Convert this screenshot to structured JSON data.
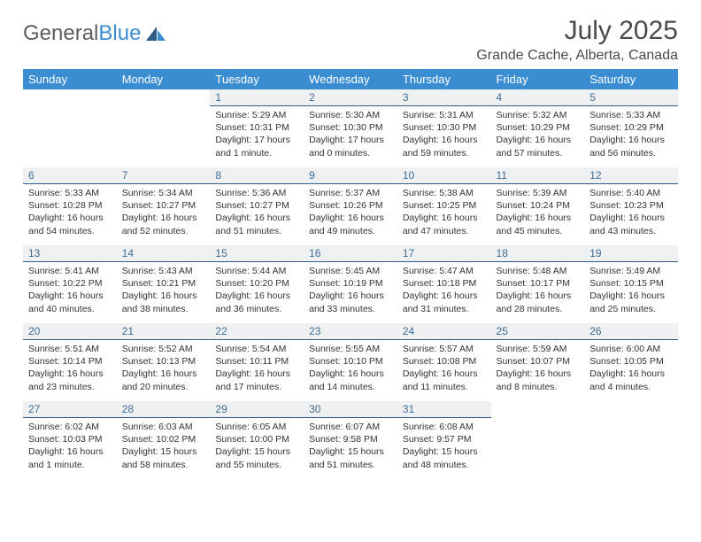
{
  "brand": {
    "word1": "General",
    "word2": "Blue"
  },
  "title": "July 2025",
  "location": "Grande Cache, Alberta, Canada",
  "colors": {
    "header_bg": "#3a8dd0",
    "header_text": "#ffffff",
    "daynum_bg": "#eef0f2",
    "daynum_text": "#3e6c94",
    "daynum_border": "#2f5b86",
    "body_text": "#333333",
    "logo_gray": "#5e5e5e",
    "logo_blue": "#3a8dd0"
  },
  "dayHeaders": [
    "Sunday",
    "Monday",
    "Tuesday",
    "Wednesday",
    "Thursday",
    "Friday",
    "Saturday"
  ],
  "weeks": [
    [
      {
        "n": "",
        "sr": "",
        "ss": "",
        "dl": ""
      },
      {
        "n": "",
        "sr": "",
        "ss": "",
        "dl": ""
      },
      {
        "n": "1",
        "sr": "Sunrise: 5:29 AM",
        "ss": "Sunset: 10:31 PM",
        "dl": "Daylight: 17 hours and 1 minute."
      },
      {
        "n": "2",
        "sr": "Sunrise: 5:30 AM",
        "ss": "Sunset: 10:30 PM",
        "dl": "Daylight: 17 hours and 0 minutes."
      },
      {
        "n": "3",
        "sr": "Sunrise: 5:31 AM",
        "ss": "Sunset: 10:30 PM",
        "dl": "Daylight: 16 hours and 59 minutes."
      },
      {
        "n": "4",
        "sr": "Sunrise: 5:32 AM",
        "ss": "Sunset: 10:29 PM",
        "dl": "Daylight: 16 hours and 57 minutes."
      },
      {
        "n": "5",
        "sr": "Sunrise: 5:33 AM",
        "ss": "Sunset: 10:29 PM",
        "dl": "Daylight: 16 hours and 56 minutes."
      }
    ],
    [
      {
        "n": "6",
        "sr": "Sunrise: 5:33 AM",
        "ss": "Sunset: 10:28 PM",
        "dl": "Daylight: 16 hours and 54 minutes."
      },
      {
        "n": "7",
        "sr": "Sunrise: 5:34 AM",
        "ss": "Sunset: 10:27 PM",
        "dl": "Daylight: 16 hours and 52 minutes."
      },
      {
        "n": "8",
        "sr": "Sunrise: 5:36 AM",
        "ss": "Sunset: 10:27 PM",
        "dl": "Daylight: 16 hours and 51 minutes."
      },
      {
        "n": "9",
        "sr": "Sunrise: 5:37 AM",
        "ss": "Sunset: 10:26 PM",
        "dl": "Daylight: 16 hours and 49 minutes."
      },
      {
        "n": "10",
        "sr": "Sunrise: 5:38 AM",
        "ss": "Sunset: 10:25 PM",
        "dl": "Daylight: 16 hours and 47 minutes."
      },
      {
        "n": "11",
        "sr": "Sunrise: 5:39 AM",
        "ss": "Sunset: 10:24 PM",
        "dl": "Daylight: 16 hours and 45 minutes."
      },
      {
        "n": "12",
        "sr": "Sunrise: 5:40 AM",
        "ss": "Sunset: 10:23 PM",
        "dl": "Daylight: 16 hours and 43 minutes."
      }
    ],
    [
      {
        "n": "13",
        "sr": "Sunrise: 5:41 AM",
        "ss": "Sunset: 10:22 PM",
        "dl": "Daylight: 16 hours and 40 minutes."
      },
      {
        "n": "14",
        "sr": "Sunrise: 5:43 AM",
        "ss": "Sunset: 10:21 PM",
        "dl": "Daylight: 16 hours and 38 minutes."
      },
      {
        "n": "15",
        "sr": "Sunrise: 5:44 AM",
        "ss": "Sunset: 10:20 PM",
        "dl": "Daylight: 16 hours and 36 minutes."
      },
      {
        "n": "16",
        "sr": "Sunrise: 5:45 AM",
        "ss": "Sunset: 10:19 PM",
        "dl": "Daylight: 16 hours and 33 minutes."
      },
      {
        "n": "17",
        "sr": "Sunrise: 5:47 AM",
        "ss": "Sunset: 10:18 PM",
        "dl": "Daylight: 16 hours and 31 minutes."
      },
      {
        "n": "18",
        "sr": "Sunrise: 5:48 AM",
        "ss": "Sunset: 10:17 PM",
        "dl": "Daylight: 16 hours and 28 minutes."
      },
      {
        "n": "19",
        "sr": "Sunrise: 5:49 AM",
        "ss": "Sunset: 10:15 PM",
        "dl": "Daylight: 16 hours and 25 minutes."
      }
    ],
    [
      {
        "n": "20",
        "sr": "Sunrise: 5:51 AM",
        "ss": "Sunset: 10:14 PM",
        "dl": "Daylight: 16 hours and 23 minutes."
      },
      {
        "n": "21",
        "sr": "Sunrise: 5:52 AM",
        "ss": "Sunset: 10:13 PM",
        "dl": "Daylight: 16 hours and 20 minutes."
      },
      {
        "n": "22",
        "sr": "Sunrise: 5:54 AM",
        "ss": "Sunset: 10:11 PM",
        "dl": "Daylight: 16 hours and 17 minutes."
      },
      {
        "n": "23",
        "sr": "Sunrise: 5:55 AM",
        "ss": "Sunset: 10:10 PM",
        "dl": "Daylight: 16 hours and 14 minutes."
      },
      {
        "n": "24",
        "sr": "Sunrise: 5:57 AM",
        "ss": "Sunset: 10:08 PM",
        "dl": "Daylight: 16 hours and 11 minutes."
      },
      {
        "n": "25",
        "sr": "Sunrise: 5:59 AM",
        "ss": "Sunset: 10:07 PM",
        "dl": "Daylight: 16 hours and 8 minutes."
      },
      {
        "n": "26",
        "sr": "Sunrise: 6:00 AM",
        "ss": "Sunset: 10:05 PM",
        "dl": "Daylight: 16 hours and 4 minutes."
      }
    ],
    [
      {
        "n": "27",
        "sr": "Sunrise: 6:02 AM",
        "ss": "Sunset: 10:03 PM",
        "dl": "Daylight: 16 hours and 1 minute."
      },
      {
        "n": "28",
        "sr": "Sunrise: 6:03 AM",
        "ss": "Sunset: 10:02 PM",
        "dl": "Daylight: 15 hours and 58 minutes."
      },
      {
        "n": "29",
        "sr": "Sunrise: 6:05 AM",
        "ss": "Sunset: 10:00 PM",
        "dl": "Daylight: 15 hours and 55 minutes."
      },
      {
        "n": "30",
        "sr": "Sunrise: 6:07 AM",
        "ss": "Sunset: 9:58 PM",
        "dl": "Daylight: 15 hours and 51 minutes."
      },
      {
        "n": "31",
        "sr": "Sunrise: 6:08 AM",
        "ss": "Sunset: 9:57 PM",
        "dl": "Daylight: 15 hours and 48 minutes."
      },
      {
        "n": "",
        "sr": "",
        "ss": "",
        "dl": ""
      },
      {
        "n": "",
        "sr": "",
        "ss": "",
        "dl": ""
      }
    ]
  ]
}
